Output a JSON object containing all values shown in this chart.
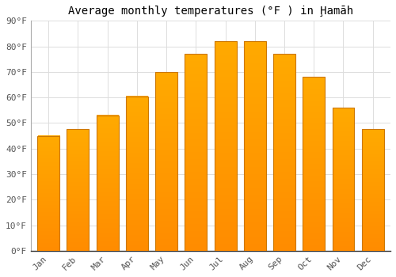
{
  "title": "Average monthly temperatures (°F ) in Ḩamāh",
  "months": [
    "Jan",
    "Feb",
    "Mar",
    "Apr",
    "May",
    "Jun",
    "Jul",
    "Aug",
    "Sep",
    "Oct",
    "Nov",
    "Dec"
  ],
  "values": [
    45,
    47.5,
    53,
    60.5,
    70,
    77,
    82,
    82,
    77,
    68,
    56,
    47.5
  ],
  "bar_color_top": "#FFAA00",
  "bar_color_bottom": "#FF8C00",
  "bar_edge_color": "#CC7700",
  "background_color": "#FFFFFF",
  "grid_color": "#DDDDDD",
  "ylim": [
    0,
    90
  ],
  "yticks": [
    0,
    10,
    20,
    30,
    40,
    50,
    60,
    70,
    80,
    90
  ],
  "ytick_labels": [
    "0°F",
    "10°F",
    "20°F",
    "30°F",
    "40°F",
    "50°F",
    "60°F",
    "70°F",
    "80°F",
    "90°F"
  ],
  "title_fontsize": 10,
  "tick_fontsize": 8,
  "font_family": "monospace"
}
